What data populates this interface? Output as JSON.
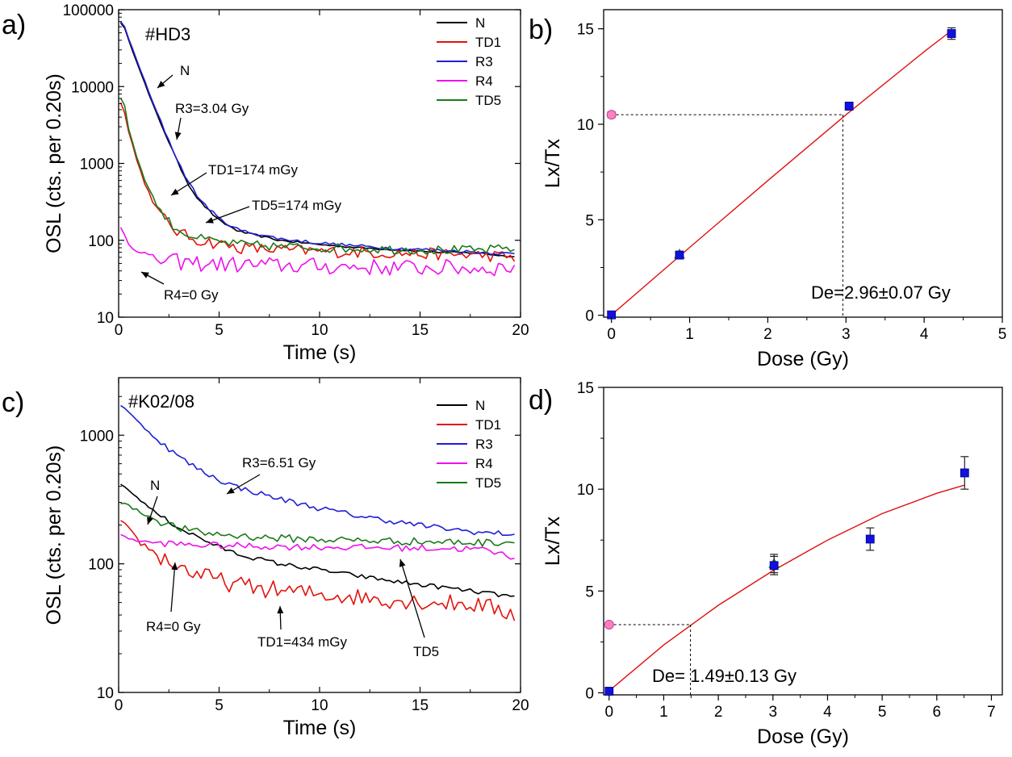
{
  "colors": {
    "N": "#000000",
    "TD1": "#e3120b",
    "R3": "#1f1fd6",
    "R4": "#ee10ee",
    "TD5": "#1a7a1a",
    "fit": "#e01010",
    "natural_point": "#ff7fbf",
    "regen_point": "#1010e0",
    "recycle_point": "#22cc22"
  },
  "chart_data": [
    {
      "type": "line",
      "panel": "a)",
      "sample": "#HD3",
      "xlabel": "Time (s)",
      "ylabel": "OSL (cts. per 0.20s)",
      "xlim": [
        0,
        20
      ],
      "ylim": [
        10,
        100000
      ],
      "yscale": "log",
      "xticks": [
        "0",
        "5",
        "10",
        "15",
        "20"
      ],
      "yticks": [
        "10",
        "100",
        "1000",
        "10000",
        "100000"
      ],
      "legend": [
        "N",
        "TD1",
        "R3",
        "R4",
        "TD5"
      ],
      "series": [
        {
          "name": "N",
          "x": [
            0.2,
            0.5,
            1,
            1.5,
            2,
            2.5,
            3,
            3.5,
            4,
            5,
            6,
            8,
            10,
            12,
            14,
            16,
            18,
            19.8
          ],
          "y": [
            68000,
            40000,
            18000,
            8000,
            3800,
            1900,
            950,
            520,
            330,
            180,
            130,
            100,
            88,
            80,
            75,
            70,
            68,
            60
          ]
        },
        {
          "name": "TD1",
          "x": [
            0.2,
            0.5,
            1,
            1.5,
            2,
            2.5,
            3,
            3.5,
            4,
            5,
            6,
            8,
            10,
            12,
            14,
            16,
            18,
            19.8
          ],
          "y": [
            6600,
            2600,
            900,
            420,
            230,
            160,
            125,
            110,
            100,
            90,
            80,
            75,
            72,
            70,
            68,
            66,
            64,
            60
          ]
        },
        {
          "name": "R3",
          "x": [
            0.2,
            0.5,
            1,
            1.5,
            2,
            2.5,
            3,
            3.5,
            4,
            5,
            6,
            8,
            10,
            12,
            14,
            16,
            18,
            19.8
          ],
          "y": [
            70000,
            42000,
            19000,
            8500,
            4000,
            2000,
            1000,
            560,
            350,
            190,
            135,
            105,
            92,
            84,
            78,
            74,
            70,
            66
          ]
        },
        {
          "name": "R4",
          "x": [
            0.2,
            0.5,
            1,
            1.5,
            2,
            3,
            4,
            6,
            8,
            10,
            12,
            14,
            16,
            18,
            19.8
          ],
          "y": [
            145,
            90,
            75,
            62,
            55,
            52,
            50,
            48,
            47,
            46,
            45,
            44,
            44,
            43,
            45
          ]
        },
        {
          "name": "TD5",
          "x": [
            0.2,
            0.5,
            1,
            1.5,
            2,
            2.5,
            3,
            3.5,
            4,
            5,
            6,
            8,
            10,
            12,
            14,
            16,
            18,
            19.8
          ],
          "y": [
            7300,
            2900,
            1000,
            470,
            255,
            175,
            135,
            118,
            105,
            95,
            88,
            83,
            80,
            78,
            76,
            75,
            74,
            80
          ]
        }
      ],
      "annotations": [
        "N",
        "R3=3.04 Gy",
        "TD1=174 mGy",
        "TD5=174 mGy",
        "R4=0 Gy"
      ]
    },
    {
      "type": "scatter",
      "panel": "b)",
      "xlabel": "Dose (Gy)",
      "ylabel": "Lx/Tx",
      "xlim": [
        -0.1,
        5
      ],
      "ylim": [
        -0.1,
        16
      ],
      "xticks": [
        "0",
        "1",
        "2",
        "3",
        "4",
        "5"
      ],
      "yticks": [
        "0",
        "5",
        "10",
        "15"
      ],
      "points": [
        {
          "kind": "natural",
          "x": 0,
          "y": 10.5,
          "err": 0.15
        },
        {
          "kind": "regen",
          "x": 0,
          "y": 0.02,
          "err": 0.05
        },
        {
          "kind": "recycle",
          "x": 0.87,
          "y": 3.2,
          "err": 0.15
        },
        {
          "kind": "regen",
          "x": 0.87,
          "y": 3.15,
          "err": 0.12
        },
        {
          "kind": "regen",
          "x": 3.04,
          "y": 10.95,
          "err": 0.2
        },
        {
          "kind": "regen",
          "x": 4.35,
          "y": 14.75,
          "err": 0.3
        }
      ],
      "fit": {
        "x": [
          0,
          1,
          2,
          3,
          4,
          4.35
        ],
        "y": [
          0.02,
          3.55,
          7.05,
          10.5,
          13.8,
          14.9
        ]
      },
      "de_value": 2.96,
      "de_label": "De=2.96±0.07 Gy"
    },
    {
      "type": "line",
      "panel": "c)",
      "sample": "#K02/08",
      "xlabel": "Time (s)",
      "ylabel": "OSL (cts. per 0.20s)",
      "xlim": [
        0,
        20
      ],
      "ylim": [
        10,
        2800
      ],
      "yscale": "log",
      "xticks": [
        "0",
        "5",
        "10",
        "15",
        "20"
      ],
      "yticks": [
        "10",
        "100",
        "1000"
      ],
      "legend": [
        "N",
        "TD1",
        "R3",
        "R4",
        "TD5"
      ],
      "series": [
        {
          "name": "N",
          "x": [
            0.2,
            1,
            2,
            3,
            4,
            5,
            6,
            8,
            10,
            12,
            14,
            16,
            18,
            19.8
          ],
          "y": [
            410,
            320,
            240,
            190,
            160,
            135,
            118,
            100,
            90,
            80,
            72,
            66,
            60,
            55
          ]
        },
        {
          "name": "TD1",
          "x": [
            0.2,
            1,
            2,
            3,
            4,
            5,
            6,
            8,
            10,
            12,
            14,
            16,
            18,
            19.8
          ],
          "y": [
            205,
            150,
            115,
            95,
            82,
            74,
            68,
            62,
            58,
            55,
            52,
            50,
            48,
            40
          ]
        },
        {
          "name": "R3",
          "x": [
            0.2,
            1,
            2,
            3,
            4,
            5,
            6,
            8,
            10,
            12,
            14,
            16,
            18,
            19.8
          ],
          "y": [
            1700,
            1250,
            900,
            680,
            540,
            450,
            390,
            320,
            270,
            235,
            210,
            190,
            175,
            170
          ]
        },
        {
          "name": "R4",
          "x": [
            0.2,
            1,
            2,
            3,
            4,
            6,
            8,
            10,
            12,
            14,
            16,
            18,
            19.8
          ],
          "y": [
            165,
            150,
            145,
            142,
            140,
            138,
            136,
            135,
            134,
            133,
            132,
            130,
            112
          ]
        },
        {
          "name": "TD5",
          "x": [
            0.2,
            1,
            2,
            3,
            4,
            6,
            8,
            10,
            12,
            14,
            16,
            18,
            19.8
          ],
          "y": [
            300,
            255,
            215,
            190,
            175,
            165,
            158,
            155,
            152,
            150,
            148,
            146,
            150
          ]
        }
      ],
      "annotations": [
        "R3=6.51 Gy",
        "N",
        "R4=0 Gy",
        "TD1=434 mGy",
        "TD5"
      ]
    },
    {
      "type": "scatter",
      "panel": "d)",
      "xlabel": "Dose (Gy)",
      "ylabel": "Lx/Tx",
      "xlim": [
        -0.1,
        7.2
      ],
      "ylim": [
        -0.1,
        15
      ],
      "xticks": [
        "0",
        "1",
        "2",
        "3",
        "4",
        "5",
        "6",
        "7"
      ],
      "yticks": [
        "0",
        "5",
        "10",
        "15"
      ],
      "points": [
        {
          "kind": "natural",
          "x": 0,
          "y": 3.35,
          "err": 0.1
        },
        {
          "kind": "regen",
          "x": 0,
          "y": 0.08,
          "err": 0.1
        },
        {
          "kind": "recycle",
          "x": 3.02,
          "y": 6.35,
          "err": 0.45
        },
        {
          "kind": "regen",
          "x": 3.02,
          "y": 6.25,
          "err": 0.45
        },
        {
          "kind": "regen",
          "x": 4.78,
          "y": 7.55,
          "err": 0.55
        },
        {
          "kind": "regen",
          "x": 6.51,
          "y": 10.8,
          "err": 0.8
        }
      ],
      "fit": {
        "x": [
          0,
          1,
          2,
          3,
          4,
          5,
          6,
          6.51
        ],
        "y": [
          0.1,
          2.35,
          4.3,
          6.0,
          7.5,
          8.8,
          9.8,
          10.2
        ]
      },
      "de_value": 1.49,
      "de_label": "De= 1.49±0.13 Gy"
    }
  ]
}
